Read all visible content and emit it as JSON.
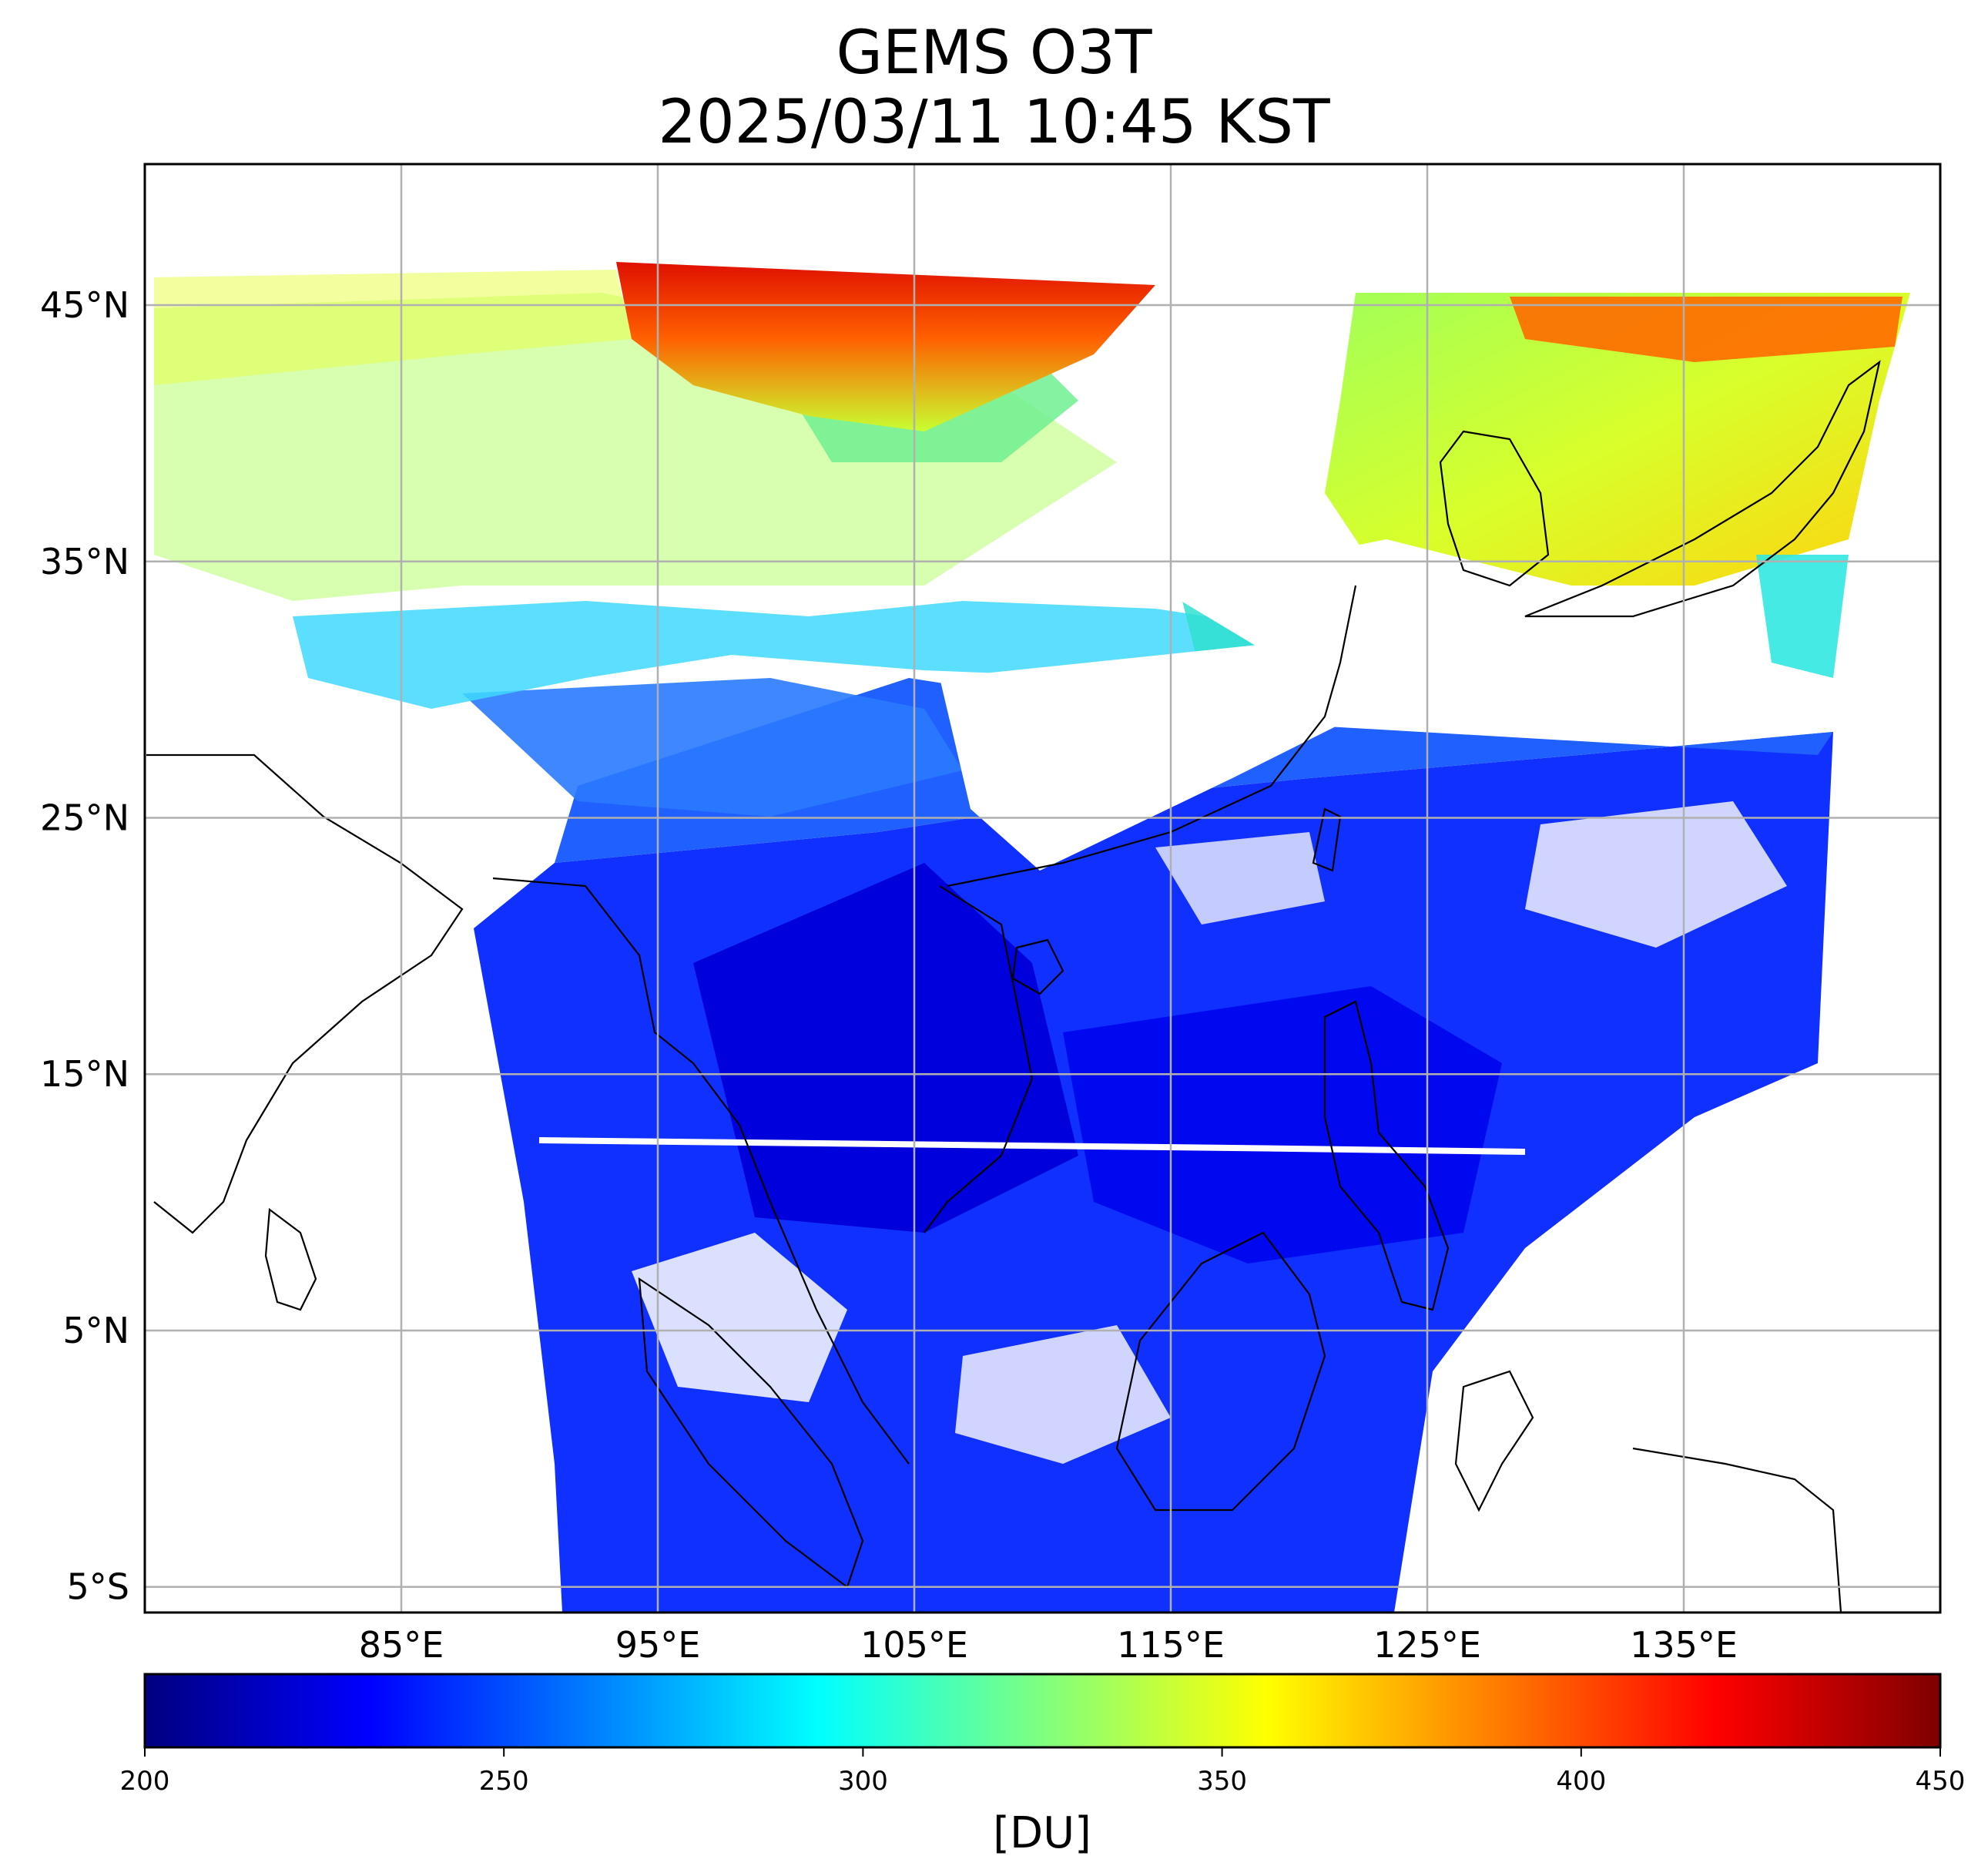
{
  "title": {
    "line1": "GEMS O3T",
    "line2": "2025/03/11 10:45 KST"
  },
  "map": {
    "extent": {
      "lon_min": 75,
      "lon_max": 145,
      "lat_min": -6,
      "lat_max": 50.5
    },
    "lat_ticks": [
      {
        "value": 45,
        "label": "45°N"
      },
      {
        "value": 35,
        "label": "35°N"
      },
      {
        "value": 25,
        "label": "25°N"
      },
      {
        "value": 15,
        "label": "15°N"
      },
      {
        "value": 5,
        "label": "5°N"
      },
      {
        "value": -5,
        "label": "5°S"
      }
    ],
    "lon_ticks": [
      {
        "value": 85,
        "label": "85°E"
      },
      {
        "value": 95,
        "label": "95°E"
      },
      {
        "value": 105,
        "label": "105°E"
      },
      {
        "value": 115,
        "label": "115°E"
      },
      {
        "value": 125,
        "label": "125°E"
      },
      {
        "value": 135,
        "label": "135°E"
      }
    ],
    "gridlines": true,
    "grid_color": "#b0b0b0"
  },
  "colorbar": {
    "min": 200,
    "max": 450,
    "ticks": [
      "200",
      "250",
      "300",
      "350",
      "400",
      "450"
    ],
    "tick_values": [
      200,
      250,
      300,
      350,
      400,
      450
    ],
    "label": "[DU]",
    "colormap": "jet",
    "stops": [
      "#00007f",
      "#0000ff",
      "#007fff",
      "#00ffff",
      "#7fff7f",
      "#ffff00",
      "#ff7f00",
      "#ff0000",
      "#7f0000"
    ]
  }
}
